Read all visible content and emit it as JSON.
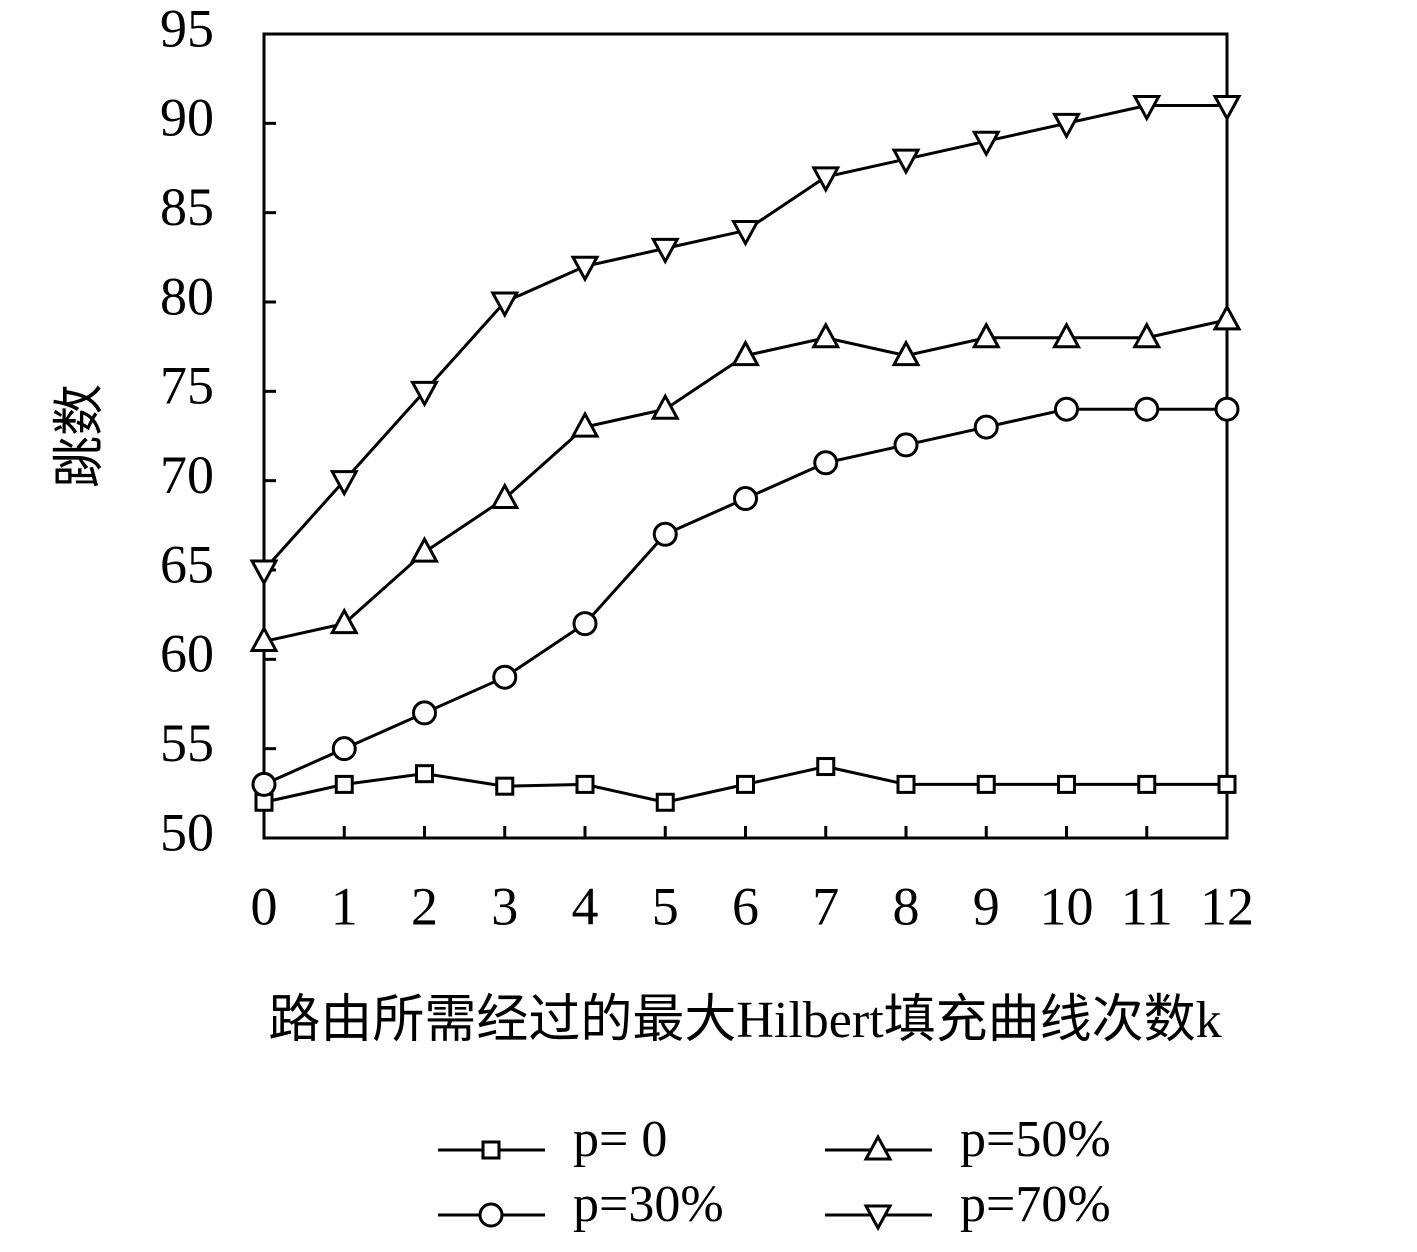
{
  "chart_data": {
    "type": "line",
    "x_label": "路由所需经过的最大Hilbert填充曲线次数k",
    "y_label": "跳数",
    "x": [
      0,
      1,
      2,
      3,
      4,
      5,
      6,
      7,
      8,
      9,
      10,
      11,
      12
    ],
    "xlim": [
      0,
      12
    ],
    "xticks": [
      0,
      1,
      2,
      3,
      4,
      5,
      6,
      7,
      8,
      9,
      10,
      11,
      12
    ],
    "ylim": [
      50,
      95
    ],
    "yticks": [
      50,
      55,
      60,
      65,
      70,
      75,
      80,
      85,
      90,
      95
    ],
    "series": [
      {
        "name": "p= 0",
        "color": "#000000",
        "marker": "square",
        "values": [
          52,
          53,
          53.6,
          52.9,
          53,
          52,
          53,
          54,
          53,
          53,
          53,
          53,
          53
        ]
      },
      {
        "name": "p=30%",
        "color": "#000000",
        "marker": "circle",
        "values": [
          53,
          55,
          57,
          59,
          62,
          67,
          69,
          71,
          72,
          73,
          74,
          74,
          74
        ]
      },
      {
        "name": "p=50%",
        "color": "#000000",
        "marker": "triangle-up",
        "values": [
          61,
          62,
          66,
          69,
          73,
          74,
          77,
          78,
          77,
          78,
          78,
          78,
          79
        ]
      },
      {
        "name": "p=70%",
        "color": "#000000",
        "marker": "triangle-down",
        "values": [
          65,
          70,
          75,
          80,
          82,
          83,
          84,
          87,
          88,
          89,
          90,
          91,
          91
        ]
      }
    ]
  }
}
